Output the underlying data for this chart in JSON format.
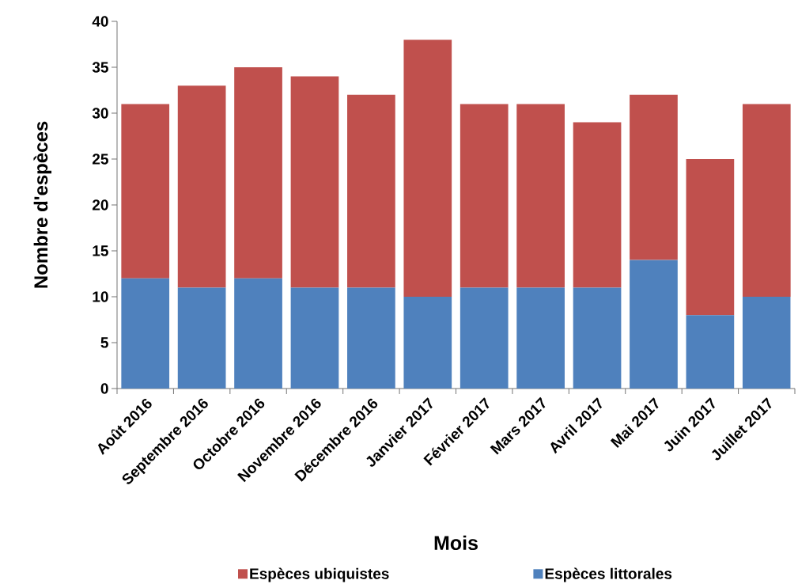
{
  "chart_data": {
    "type": "bar",
    "stacked": true,
    "xlabel": "Mois",
    "ylabel": "Nombre d'espèces",
    "categories": [
      "Août 2016",
      "Septembre 2016",
      "Octobre 2016",
      "Novembre 2016",
      "Décembre 2016",
      "Janvier 2017",
      "Février 2017",
      "Mars 2017",
      "Avril 2017",
      "Mai 2017",
      "Juin 2017",
      "Juillet 2017"
    ],
    "series": [
      {
        "name": "Espèces littorales",
        "color": "#4f81bd",
        "values": [
          12,
          11,
          12,
          11,
          11,
          10,
          11,
          11,
          11,
          14,
          8,
          10
        ]
      },
      {
        "name": "Espèces ubiquistes",
        "color": "#c0504d",
        "values": [
          19,
          22,
          23,
          23,
          21,
          28,
          20,
          20,
          18,
          18,
          17,
          21
        ]
      }
    ],
    "ylim": [
      0,
      40
    ],
    "yticks": [
      0,
      5,
      10,
      15,
      20,
      25,
      30,
      35,
      40
    ],
    "legend": "bottom"
  }
}
